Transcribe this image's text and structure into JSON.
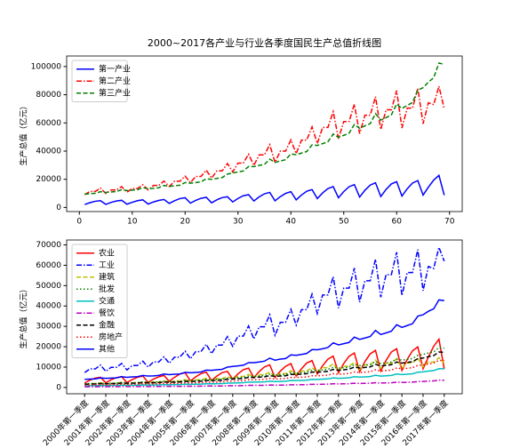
{
  "chart_data": [
    {
      "type": "line",
      "title": "2000~2017各产业与行业各季度国民生产总值折线图",
      "ylabel": "生产总值（亿元）",
      "x": [
        1,
        2,
        3,
        4,
        5,
        6,
        7,
        8,
        9,
        10,
        11,
        12,
        13,
        14,
        15,
        16,
        17,
        18,
        19,
        20,
        21,
        22,
        23,
        24,
        25,
        26,
        27,
        28,
        29,
        30,
        31,
        32,
        33,
        34,
        35,
        36,
        37,
        38,
        39,
        40,
        41,
        42,
        43,
        44,
        45,
        46,
        47,
        48,
        49,
        50,
        51,
        52,
        53,
        54,
        55,
        56,
        57,
        58,
        59,
        60,
        61,
        62,
        63,
        64,
        65,
        66,
        67,
        68,
        69
      ],
      "xlim": [
        -2.4,
        72.4
      ],
      "xticks": [
        0,
        10,
        20,
        30,
        40,
        50,
        60,
        70
      ],
      "ylim": [
        -2900,
        107500
      ],
      "yticks": [
        0,
        20000,
        40000,
        60000,
        80000,
        100000
      ],
      "legend": "upper left",
      "series": [
        {
          "name": "第一产业",
          "color": "#0000ff",
          "linestyle": "solid",
          "values": [
            2100,
            3400,
            4400,
            4800,
            2200,
            3600,
            4600,
            5100,
            2300,
            3700,
            4800,
            5400,
            2400,
            3900,
            5000,
            5700,
            2900,
            4800,
            6300,
            6900,
            3100,
            5000,
            6500,
            7200,
            3300,
            5400,
            7000,
            7600,
            3900,
            6400,
            8300,
            9100,
            4600,
            7500,
            9700,
            10700,
            4700,
            7700,
            10000,
            11200,
            5400,
            8800,
            11500,
            12700,
            6300,
            10300,
            13400,
            14800,
            6900,
            11300,
            14700,
            16200,
            7400,
            12200,
            15900,
            17500,
            7800,
            12800,
            16700,
            18300,
            8100,
            13300,
            17300,
            19100,
            8800,
            14400,
            19400,
            22800,
            8700
          ]
        },
        {
          "name": "第二产业",
          "color": "#ff0000",
          "linestyle": "dashdot",
          "values": [
            9100,
            11400,
            11400,
            13700,
            9900,
            12400,
            12400,
            14800,
            10800,
            13500,
            13500,
            16100,
            12500,
            15600,
            15600,
            18700,
            14900,
            18600,
            18600,
            22200,
            17600,
            22000,
            22000,
            26500,
            20800,
            26000,
            26000,
            31200,
            25200,
            31500,
            31500,
            37800,
            29800,
            37300,
            37300,
            44600,
            32000,
            40000,
            40000,
            48000,
            38200,
            47800,
            47800,
            57200,
            45400,
            56800,
            56800,
            68000,
            48800,
            61000,
            61000,
            73200,
            52400,
            65500,
            65500,
            78600,
            55400,
            69300,
            69300,
            83000,
            56400,
            70500,
            70500,
            84600,
            59400,
            74300,
            73000,
            86000,
            70000
          ]
        },
        {
          "name": "第三产业",
          "color": "#008000",
          "linestyle": "dashed",
          "values": [
            9500,
            9800,
            10000,
            11200,
            10700,
            11000,
            11300,
            12600,
            12000,
            12300,
            12600,
            14100,
            13300,
            13600,
            14000,
            15600,
            15000,
            15400,
            15800,
            17700,
            17200,
            17700,
            18200,
            20300,
            20000,
            20600,
            21200,
            23700,
            24500,
            25200,
            25900,
            29000,
            29000,
            29800,
            30600,
            34300,
            32000,
            33000,
            33900,
            38000,
            37500,
            38600,
            39700,
            44400,
            44000,
            45300,
            46600,
            52100,
            49800,
            51200,
            52700,
            58900,
            56200,
            57900,
            59500,
            66600,
            62000,
            63800,
            65700,
            73400,
            70300,
            72400,
            74500,
            83300,
            85000,
            89000,
            92000,
            102500,
            101500
          ]
        }
      ]
    },
    {
      "type": "line",
      "ylabel": "生产总值（亿元）",
      "categories": [
        "2000年第一季度",
        null,
        null,
        null,
        "2001年第一季度",
        null,
        null,
        null,
        "2002年第一季度",
        null,
        null,
        null,
        "2003年第一季度",
        null,
        null,
        null,
        "2004年第一季度",
        null,
        null,
        null,
        "2005年第一季度",
        null,
        null,
        null,
        "2006年第一季度",
        null,
        null,
        null,
        "2007年第一季度",
        null,
        null,
        null,
        "2008年第一季度",
        null,
        null,
        null,
        "2009年第一季度",
        null,
        null,
        null,
        "2010年第一季度",
        null,
        null,
        null,
        "2011年第一季度",
        null,
        null,
        null,
        "2012年第一季度",
        null,
        null,
        null,
        "2013年第一季度",
        null,
        null,
        null,
        "2014年第一季度",
        null,
        null,
        null,
        "2015年第一季度",
        null,
        null,
        null,
        "2016年第一季度",
        null,
        null,
        null,
        "2017年第一季度"
      ],
      "ylim": [
        -3100,
        72400
      ],
      "yticks": [
        0,
        10000,
        20000,
        30000,
        40000,
        50000,
        60000,
        70000
      ],
      "legend": "upper left",
      "series": [
        {
          "name": "农业",
          "color": "#ff0000",
          "linestyle": "solid",
          "values": [
            2200,
            3600,
            4600,
            5000,
            2300,
            3800,
            4800,
            5300,
            2400,
            3900,
            5000,
            5600,
            2500,
            4100,
            5200,
            5900,
            3000,
            5000,
            6600,
            7200,
            3200,
            5200,
            6800,
            7500,
            3400,
            5600,
            7300,
            7900,
            4100,
            6700,
            8700,
            9500,
            4800,
            7800,
            10100,
            11100,
            4900,
            8000,
            10400,
            11700,
            5600,
            9200,
            12000,
            13200,
            6600,
            10700,
            13900,
            15400,
            7200,
            11800,
            15300,
            16900,
            7700,
            12700,
            16500,
            18200,
            8100,
            13300,
            17400,
            19000,
            8400,
            13800,
            18000,
            19900,
            9200,
            15000,
            20200,
            23700,
            9100
          ]
        },
        {
          "name": "工业",
          "color": "#0000ff",
          "linestyle": "dashdot",
          "values": [
            7300,
            9100,
            9100,
            11000,
            7900,
            9900,
            9900,
            11800,
            8600,
            10800,
            10800,
            12900,
            10000,
            12500,
            12500,
            15000,
            11900,
            14900,
            14900,
            17800,
            14100,
            17600,
            17600,
            21200,
            16600,
            20800,
            20800,
            25000,
            20200,
            25200,
            25200,
            30200,
            23800,
            29800,
            29800,
            35700,
            25600,
            32000,
            32000,
            38400,
            30600,
            38200,
            38200,
            45800,
            36300,
            45400,
            45400,
            54400,
            39000,
            48800,
            48800,
            58600,
            41900,
            52400,
            52400,
            62900,
            44300,
            55400,
            55400,
            66400,
            45100,
            56400,
            56400,
            67700,
            47500,
            59400,
            58400,
            68800,
            62000
          ]
        },
        {
          "name": "建筑",
          "color": "#bfbf00",
          "linestyle": "dashed",
          "values": [
            1500,
            1900,
            1900,
            2300,
            1700,
            2100,
            2100,
            2500,
            1800,
            2300,
            2300,
            2700,
            2100,
            2700,
            2700,
            3200,
            2500,
            3200,
            3200,
            3800,
            3000,
            3700,
            3700,
            4500,
            3500,
            4400,
            4400,
            5300,
            4300,
            5400,
            5400,
            6400,
            5100,
            6300,
            6300,
            7600,
            5400,
            6800,
            6800,
            8200,
            6500,
            8100,
            8100,
            9700,
            7700,
            9700,
            9700,
            11600,
            8300,
            10400,
            10400,
            12400,
            8900,
            11100,
            11100,
            13400,
            9400,
            11800,
            11800,
            14100,
            9600,
            12000,
            12000,
            14400,
            10100,
            12600,
            12400,
            14600,
            11900
          ]
        },
        {
          "name": "批发",
          "color": "#008000",
          "linestyle": "dotted",
          "values": [
            1800,
            1900,
            1900,
            2100,
            2000,
            2100,
            2100,
            2400,
            2300,
            2300,
            2400,
            2700,
            2500,
            2600,
            2700,
            3000,
            2900,
            2900,
            3000,
            3400,
            3300,
            3400,
            3500,
            3900,
            3800,
            3900,
            4000,
            4500,
            4700,
            4800,
            4900,
            5500,
            5500,
            5700,
            5800,
            6500,
            6100,
            6300,
            6400,
            7200,
            7100,
            7300,
            7500,
            8400,
            8400,
            8600,
            8900,
            9900,
            9500,
            9700,
            10000,
            11200,
            10700,
            11000,
            11300,
            12700,
            11800,
            12100,
            12500,
            13900,
            13400,
            13800,
            14200,
            15800,
            16200,
            16900,
            17500,
            19500,
            19300
          ]
        },
        {
          "name": "交通",
          "color": "#00bfbf",
          "linestyle": "solid",
          "values": [
            850,
            880,
            900,
            1000,
            960,
            990,
            1020,
            1130,
            1080,
            1110,
            1130,
            1270,
            1200,
            1220,
            1260,
            1400,
            1350,
            1390,
            1420,
            1590,
            1550,
            1590,
            1640,
            1830,
            1800,
            1850,
            1910,
            2130,
            2210,
            2270,
            2330,
            2610,
            2610,
            2680,
            2750,
            3090,
            2880,
            2970,
            3050,
            3420,
            3380,
            3470,
            3570,
            4000,
            3960,
            4080,
            4190,
            4690,
            4480,
            4610,
            4740,
            5300,
            5060,
            5210,
            5360,
            5990,
            5580,
            5740,
            5910,
            6610,
            6330,
            6520,
            6710,
            7500,
            7650,
            8010,
            8280,
            9230,
            9140
          ]
        },
        {
          "name": "餐饮",
          "color": "#bf00bf",
          "linestyle": "dashdot",
          "values": [
            330,
            340,
            350,
            390,
            370,
            390,
            400,
            440,
            420,
            430,
            440,
            490,
            470,
            480,
            490,
            550,
            530,
            540,
            550,
            620,
            600,
            620,
            640,
            710,
            700,
            720,
            740,
            830,
            860,
            880,
            910,
            1020,
            1020,
            1040,
            1070,
            1200,
            1120,
            1160,
            1190,
            1330,
            1310,
            1350,
            1390,
            1550,
            1540,
            1590,
            1630,
            1820,
            1740,
            1790,
            1840,
            2060,
            1970,
            2030,
            2080,
            2330,
            2170,
            2230,
            2300,
            2570,
            2460,
            2530,
            2610,
            2920,
            2980,
            3120,
            3220,
            3590,
            3550
          ]
        },
        {
          "name": "金融",
          "color": "#000000",
          "linestyle": "dashed",
          "values": [
            1600,
            1670,
            1700,
            1900,
            1820,
            1870,
            1920,
            2140,
            2040,
            2090,
            2140,
            2400,
            2260,
            2310,
            2380,
            2650,
            2550,
            2620,
            2690,
            3010,
            2920,
            3010,
            3090,
            3450,
            3400,
            3500,
            3600,
            4030,
            4170,
            4280,
            4400,
            4930,
            4930,
            5070,
            5200,
            5830,
            5440,
            5610,
            5760,
            6460,
            6380,
            6560,
            6750,
            7550,
            7480,
            7700,
            7920,
            8860,
            8470,
            8700,
            8960,
            10010,
            9550,
            9840,
            10120,
            11320,
            10540,
            10850,
            11170,
            12480,
            11950,
            12310,
            12670,
            14160,
            14450,
            15130,
            15640,
            17430,
            17260
          ]
        },
        {
          "name": "房地产",
          "color": "#ff0000",
          "linestyle": "dotted",
          "values": [
            1240,
            1270,
            1300,
            1460,
            1390,
            1430,
            1470,
            1640,
            1560,
            1600,
            1640,
            1830,
            1730,
            1770,
            1820,
            2030,
            1950,
            2000,
            2050,
            2300,
            2240,
            2300,
            2370,
            2640,
            2600,
            2680,
            2760,
            3080,
            3190,
            3280,
            3370,
            3770,
            3770,
            3870,
            3980,
            4460,
            4160,
            4290,
            4410,
            4940,
            4880,
            5020,
            5160,
            5770,
            5720,
            5890,
            6060,
            6770,
            6470,
            6660,
            6850,
            7660,
            7310,
            7530,
            7740,
            8660,
            8060,
            8290,
            8540,
            9540,
            9140,
            9410,
            9690,
            10830,
            11050,
            11570,
            11960,
            13330,
            13200
          ]
        },
        {
          "name": "其他",
          "color": "#0000ff",
          "linestyle": "solid",
          "values": [
            4000,
            4100,
            4200,
            4700,
            4500,
            4600,
            4700,
            5300,
            5000,
            5200,
            5300,
            5900,
            5600,
            5700,
            5900,
            6600,
            6300,
            6500,
            6600,
            7400,
            7200,
            7400,
            7600,
            8500,
            8400,
            8700,
            8900,
            10000,
            10300,
            10600,
            10900,
            12200,
            12200,
            12500,
            12900,
            14400,
            13400,
            13900,
            14200,
            16000,
            15800,
            16200,
            16700,
            18600,
            18500,
            19000,
            19600,
            21900,
            20900,
            21500,
            22100,
            24700,
            23600,
            24300,
            25000,
            28000,
            26000,
            26800,
            27600,
            30800,
            29500,
            30400,
            31300,
            35000,
            35700,
            37400,
            38600,
            43000,
            42600
          ]
        }
      ]
    }
  ]
}
